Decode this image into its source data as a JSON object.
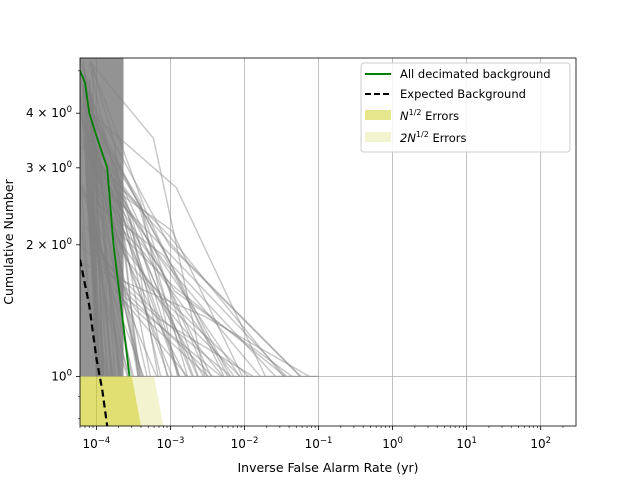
{
  "chart_data": {
    "type": "line",
    "xlabel": "Inverse False Alarm Rate (yr)",
    "ylabel": "Cumulative Number",
    "xscale": "log",
    "yscale": "log",
    "xlim": [
      6e-05,
      300
    ],
    "ylim": [
      0.77,
      5.35
    ],
    "grid": true,
    "legend_position": "top-right",
    "x_ticks": [
      {
        "value": 0.0001,
        "base": "10",
        "exp": "−4"
      },
      {
        "value": 0.001,
        "base": "10",
        "exp": "−3"
      },
      {
        "value": 0.01,
        "base": "10",
        "exp": "−2"
      },
      {
        "value": 0.1,
        "base": "10",
        "exp": "−1"
      },
      {
        "value": 1,
        "base": "10",
        "exp": "0"
      },
      {
        "value": 10,
        "base": "10",
        "exp": "1"
      },
      {
        "value": 100,
        "base": "10",
        "exp": "2"
      }
    ],
    "y_ticks": [
      {
        "value": 1,
        "mant": "",
        "base": "10",
        "exp": "0"
      },
      {
        "value": 2,
        "mant": "2 × ",
        "base": "10",
        "exp": "0"
      },
      {
        "value": 3,
        "mant": "3 × ",
        "base": "10",
        "exp": "0"
      },
      {
        "value": 4,
        "mant": "4 × ",
        "base": "10",
        "exp": "0"
      }
    ],
    "legend": [
      {
        "label": "All decimated background",
        "style": "green-line"
      },
      {
        "label": "Expected Background",
        "style": "black-dashed"
      },
      {
        "label_prefix": "N",
        "label_sup": "1/2",
        "label_suffix": " Errors",
        "style": "dark-band"
      },
      {
        "label_prefix": "2N",
        "label_sup": "1/2",
        "label_suffix": " Errors",
        "style": "light-band"
      }
    ],
    "series": [
      {
        "name": "All decimated background",
        "color": "#008000",
        "points": [
          [
            6e-05,
            5.0
          ],
          [
            7e-05,
            4.7
          ],
          [
            8e-05,
            4.0
          ],
          [
            0.0001,
            3.55
          ],
          [
            0.00014,
            3.0
          ],
          [
            0.00017,
            2.0
          ],
          [
            0.00022,
            1.4
          ],
          [
            0.00028,
            1.0
          ]
        ]
      },
      {
        "name": "Expected Background",
        "color": "#000000",
        "dashed": true,
        "points": [
          [
            6e-05,
            1.85
          ],
          [
            8e-05,
            1.45
          ],
          [
            0.0001,
            1.1
          ],
          [
            0.00012,
            0.93
          ],
          [
            0.00014,
            0.77
          ]
        ]
      }
    ],
    "error_bands": [
      {
        "name": "N^1/2 Errors",
        "color": "#c8c800",
        "opacity": 0.45,
        "points": [
          [
            6e-05,
            1.0
          ],
          [
            0.0003,
            1.0
          ],
          [
            0.0004,
            0.77
          ],
          [
            6e-05,
            0.77
          ]
        ]
      },
      {
        "name": "2N^1/2 Errors",
        "color": "#d8d860",
        "opacity": 0.3,
        "points": [
          [
            6e-05,
            1.0
          ],
          [
            0.0006,
            1.0
          ],
          [
            0.0008,
            0.77
          ],
          [
            6e-05,
            0.77
          ]
        ]
      }
    ],
    "background_trials": {
      "color": "#808080",
      "count": 95,
      "note_ends_at_y": 1.0,
      "ends_x_range": [
        0.0001,
        0.1
      ]
    },
    "dense_region": {
      "color": "#808080",
      "x_range": [
        6e-05,
        0.00028
      ],
      "y_range": [
        1.0,
        5.35
      ]
    }
  }
}
